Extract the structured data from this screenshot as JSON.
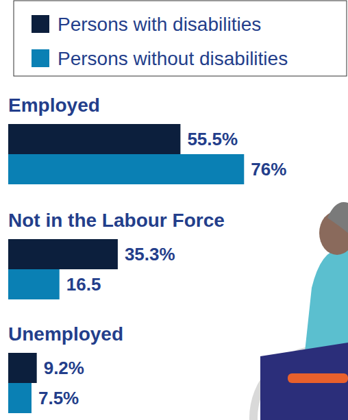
{
  "chart_data": {
    "type": "bar",
    "orientation": "horizontal",
    "categories": [
      "Employed",
      "Not in the Labour Force",
      "Unemployed"
    ],
    "series": [
      {
        "name": "Persons with disabilities",
        "color": "#0c1f3d",
        "values": [
          55.5,
          35.3,
          9.2
        ],
        "value_labels": [
          "55.5%",
          "35.3%",
          "9.2%"
        ]
      },
      {
        "name": "Persons without disabilities",
        "color": "#0a80b4",
        "values": [
          76,
          16.5,
          7.5
        ],
        "value_labels": [
          "76%",
          "16.5",
          "7.5%"
        ]
      }
    ],
    "xlim": [
      0,
      100
    ],
    "data_labels": true,
    "tick_labels": false,
    "grid": false,
    "legend": "top"
  }
}
